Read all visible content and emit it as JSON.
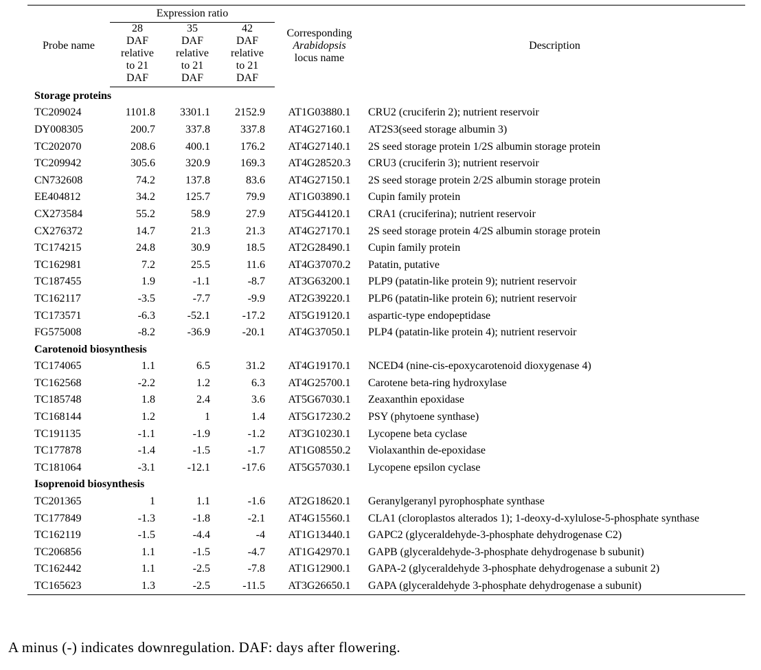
{
  "table": {
    "header": {
      "group": "Expression ratio",
      "probe": "Probe name",
      "ratios": [
        [
          "28",
          "DAF",
          "relative",
          "to 21",
          "DAF"
        ],
        [
          "35",
          "DAF",
          "relative",
          "to 21",
          "DAF"
        ],
        [
          "42",
          "DAF",
          "relative",
          "to 21",
          "DAF"
        ]
      ],
      "locus": {
        "line1": "Corresponding",
        "italic": "Arabidopsis",
        "line3": "locus name"
      },
      "description": "Description"
    },
    "sections": [
      {
        "title": "Storage proteins",
        "rows": [
          [
            "TC209024",
            "1101.8",
            "3301.1",
            "2152.9",
            "AT1G03880.1",
            "CRU2 (cruciferin 2); nutrient reservoir"
          ],
          [
            "DY008305",
            "200.7",
            "337.8",
            "337.8",
            "AT4G27160.1",
            "AT2S3(seed storage albumin 3)"
          ],
          [
            "TC202070",
            "208.6",
            "400.1",
            "176.2",
            "AT4G27140.1",
            "2S seed storage protein 1/2S albumin storage protein"
          ],
          [
            "TC209942",
            "305.6",
            "320.9",
            "169.3",
            "AT4G28520.3",
            "CRU3 (cruciferin 3); nutrient reservoir"
          ],
          [
            "CN732608",
            "74.2",
            "137.8",
            "83.6",
            "AT4G27150.1",
            "2S seed storage protein 2/2S albumin storage protein"
          ],
          [
            "EE404812",
            "34.2",
            "125.7",
            "79.9",
            "AT1G03890.1",
            "Cupin family protein"
          ],
          [
            "CX273584",
            "55.2",
            "58.9",
            "27.9",
            "AT5G44120.1",
            "CRA1 (cruciferina); nutrient reservoir"
          ],
          [
            "CX276372",
            "14.7",
            "21.3",
            "21.3",
            "AT4G27170.1",
            "2S seed storage protein 4/2S albumin storage protein"
          ],
          [
            "TC174215",
            "24.8",
            "30.9",
            "18.5",
            "AT2G28490.1",
            "Cupin family protein"
          ],
          [
            "TC162981",
            "7.2",
            "25.5",
            "11.6",
            "AT4G37070.2",
            "Patatin, putative"
          ],
          [
            "TC187455",
            "1.9",
            "-1.1",
            "-8.7",
            "AT3G63200.1",
            "PLP9 (patatin-like protein 9); nutrient reservoir"
          ],
          [
            "TC162117",
            "-3.5",
            "-7.7",
            "-9.9",
            "AT2G39220.1",
            "PLP6 (patatin-like protein 6); nutrient reservoir"
          ],
          [
            "TC173571",
            "-6.3",
            "-52.1",
            "-17.2",
            "AT5G19120.1",
            "aspartic-type endopeptidase"
          ],
          [
            "FG575008",
            "-8.2",
            "-36.9",
            "-20.1",
            "AT4G37050.1",
            "PLP4 (patatin-like protein 4); nutrient reservoir"
          ]
        ]
      },
      {
        "title": "Carotenoid biosynthesis",
        "rows": [
          [
            "TC174065",
            "1.1",
            "6.5",
            "31.2",
            "AT4G19170.1",
            "NCED4 (nine-cis-epoxycarotenoid dioxygenase 4)"
          ],
          [
            "TC162568",
            "-2.2",
            "1.2",
            "6.3",
            "AT4G25700.1",
            "Carotene beta-ring hydroxylase"
          ],
          [
            "TC185748",
            "1.8",
            "2.4",
            "3.6",
            "AT5G67030.1",
            "Zeaxanthin epoxidase"
          ],
          [
            "TC168144",
            "1.2",
            "1",
            "1.4",
            "AT5G17230.2",
            "PSY (phytoene synthase)"
          ],
          [
            "TC191135",
            "-1.1",
            "-1.9",
            "-1.2",
            "AT3G10230.1",
            "Lycopene beta cyclase"
          ],
          [
            "TC177878",
            "-1.4",
            "-1.5",
            "-1.7",
            "AT1G08550.2",
            "Violaxanthin de-epoxidase"
          ],
          [
            "TC181064",
            "-3.1",
            "-12.1",
            "-17.6",
            "AT5G57030.1",
            "Lycopene epsilon cyclase"
          ]
        ]
      },
      {
        "title": "Isoprenoid biosynthesis",
        "rows": [
          [
            "TC201365",
            "1",
            "1.1",
            "-1.6",
            "AT2G18620.1",
            "Geranylgeranyl pyrophosphate synthase"
          ],
          [
            "TC177849",
            "-1.3",
            "-1.8",
            "-2.1",
            "AT4G15560.1",
            "CLA1 (cloroplastos alterados 1); 1-deoxy-d-xylulose-5-phosphate synthase"
          ],
          [
            "TC162119",
            "-1.5",
            "-4.4",
            "-4",
            "AT1G13440.1",
            "GAPC2 (glyceraldehyde-3-phosphate dehydrogenase C2)"
          ],
          [
            "TC206856",
            "1.1",
            "-1.5",
            "-4.7",
            "AT1G42970.1",
            "GAPB (glyceraldehyde-3-phosphate dehydrogenase b subunit)"
          ],
          [
            "TC162442",
            "1.1",
            "-2.5",
            "-7.8",
            "AT1G12900.1",
            "GAPA-2 (glyceraldehyde 3-phosphate dehydrogenase a subunit 2)"
          ],
          [
            "TC165623",
            "1.3",
            "-2.5",
            "-11.5",
            "AT3G26650.1",
            "GAPA (glyceraldehyde 3-phosphate dehydrogenase a subunit)"
          ]
        ]
      }
    ]
  },
  "footnote": "A minus (-) indicates downregulation. DAF: days after flowering."
}
